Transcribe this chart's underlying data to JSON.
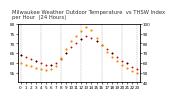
{
  "title_line1": "Milwaukee Weather Outdoor Temperature",
  "title_line2": "vs THSW Index",
  "title_line3": "per Hour",
  "title_line4": "(24 Hours)",
  "hours": [
    0,
    1,
    2,
    3,
    4,
    5,
    6,
    7,
    8,
    9,
    10,
    11,
    12,
    13,
    14,
    15,
    16,
    17,
    18,
    19,
    20,
    21,
    22,
    23
  ],
  "temp": [
    64,
    63,
    62,
    61,
    60,
    59,
    59,
    60,
    62,
    65,
    68,
    70,
    72,
    74,
    73,
    71,
    69,
    67,
    65,
    63,
    61,
    60,
    58,
    57
  ],
  "thsw": [
    60,
    58,
    57,
    55,
    54,
    53,
    54,
    57,
    65,
    74,
    82,
    88,
    93,
    97,
    94,
    86,
    78,
    71,
    66,
    62,
    58,
    55,
    52,
    50
  ],
  "temp_color": "#cc0000",
  "thsw_color": "#ff8800",
  "black_color": "#000000",
  "bg_color": "#ffffff",
  "grid_color": "#888888",
  "ylim_left": [
    50,
    80
  ],
  "ylim_right": [
    40,
    100
  ],
  "yticks_left": [
    55,
    60,
    65,
    70,
    75,
    80
  ],
  "yticks_right": [
    40,
    50,
    60,
    70,
    80,
    90,
    100
  ],
  "title_fontsize": 3.8,
  "tick_fontsize": 3.0,
  "marker_size": 1.8,
  "thsw_marker_size": 2.5
}
